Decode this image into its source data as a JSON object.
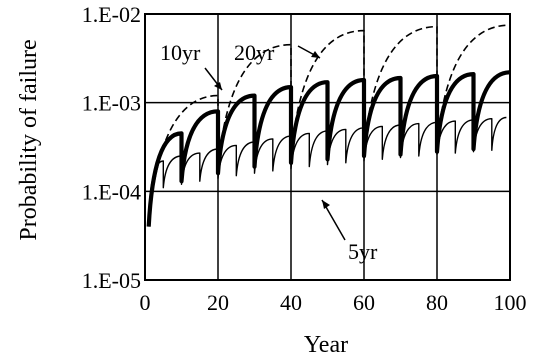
{
  "chart_data": {
    "type": "line",
    "title": "",
    "xlabel": "Year",
    "ylabel": "Probability of failure",
    "x_range": [
      0,
      100
    ],
    "y_range": [
      1e-05,
      0.01
    ],
    "y_scale": "log",
    "grid": true,
    "x_ticks": [
      0,
      20,
      40,
      60,
      80,
      100
    ],
    "x_tick_labels": [
      "0",
      "20",
      "40",
      "60",
      "80",
      "100"
    ],
    "y_ticks": [
      1e-05,
      0.0001,
      0.001,
      0.01
    ],
    "y_tick_labels": [
      "1.E-05",
      "1.E-04",
      "1.E-03",
      "1.E-02"
    ],
    "series": [
      {
        "name": "5yr",
        "style": "thin-solid",
        "x": [
          1,
          5,
          5,
          10,
          10,
          15,
          15,
          20,
          20,
          25,
          25,
          30,
          30,
          35,
          35,
          40,
          40,
          45,
          45,
          50,
          50,
          55,
          55,
          60,
          60,
          65,
          65,
          70,
          70,
          75,
          75,
          80,
          80,
          85,
          85,
          90,
          90,
          95,
          95,
          99
        ],
        "y": [
          5e-05,
          0.00022,
          0.00011,
          0.00025,
          0.00012,
          0.00027,
          0.00013,
          0.0003,
          0.00014,
          0.00033,
          0.00015,
          0.00036,
          0.00016,
          0.00039,
          0.00017,
          0.00042,
          0.00018,
          0.00045,
          0.00019,
          0.00048,
          0.0002,
          0.0005,
          0.00021,
          0.00052,
          0.00022,
          0.00054,
          0.00023,
          0.00056,
          0.00024,
          0.00058,
          0.00025,
          0.0006,
          0.00026,
          0.00062,
          0.00027,
          0.00064,
          0.00028,
          0.00066,
          0.00029,
          0.00068
        ]
      },
      {
        "name": "10yr",
        "style": "thick-solid",
        "x": [
          1,
          10,
          10,
          20,
          20,
          30,
          30,
          40,
          40,
          50,
          50,
          60,
          60,
          70,
          70,
          80,
          80,
          90,
          90,
          100
        ],
        "y": [
          4e-05,
          0.00045,
          0.00013,
          0.0008,
          0.00016,
          0.0012,
          0.00019,
          0.0015,
          0.00021,
          0.0017,
          0.00023,
          0.0018,
          0.00025,
          0.0019,
          0.00026,
          0.002,
          0.00028,
          0.0021,
          0.0003,
          0.0022
        ]
      },
      {
        "name": "20yr",
        "style": "dashed",
        "x": [
          1,
          20,
          20,
          40,
          40,
          60,
          60,
          80,
          80,
          100
        ],
        "y": [
          4e-05,
          0.0012,
          0.00018,
          0.0045,
          0.00024,
          0.0065,
          0.00028,
          0.0072,
          0.00032,
          0.0075
        ]
      }
    ],
    "annotations": [
      "10yr",
      "20yr",
      "5yr"
    ]
  }
}
